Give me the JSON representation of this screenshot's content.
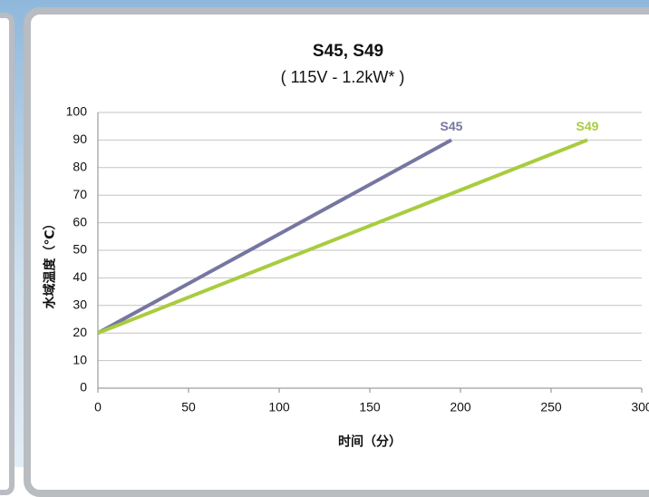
{
  "chart_data": {
    "type": "line",
    "title": "S45, S49",
    "subtitle": "( 115V - 1.2kW* )",
    "x_label": "时间（分）",
    "y_label": "水域温度（℃）",
    "series": [
      {
        "name": "S45",
        "color": "#7676a2",
        "x": [
          0,
          195
        ],
        "values": [
          20,
          90
        ]
      },
      {
        "name": "S49",
        "color": "#a9cc3e",
        "x": [
          0,
          270
        ],
        "values": [
          20,
          90
        ]
      }
    ],
    "xlim": [
      0,
      300
    ],
    "xticks": [
      0,
      50,
      100,
      150,
      200,
      250,
      300
    ],
    "ylim": [
      0,
      100
    ],
    "yticks": [
      0,
      10,
      20,
      30,
      40,
      50,
      60,
      70,
      80,
      90,
      100
    ],
    "grid": true
  }
}
